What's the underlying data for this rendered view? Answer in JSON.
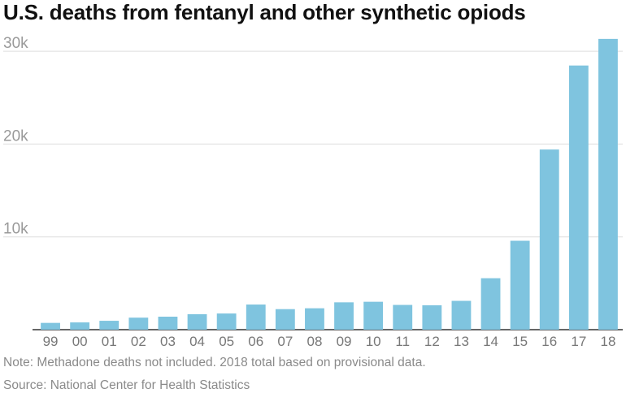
{
  "title": "U.S. deaths from fentanyl and other synthetic opiods",
  "note": "Note: Methadone deaths not included. 2018 total based on provisional data.",
  "source": "Source: National Center for Health Statistics",
  "colors": {
    "bar": "#7fc4df",
    "grid": "#dddddd",
    "axis": "#333333"
  },
  "chart_data": {
    "type": "bar",
    "title": "U.S. deaths from fentanyl and other synthetic opiods",
    "xlabel": "",
    "ylabel": "",
    "ylim": [
      0,
      31500
    ],
    "yticks": [
      10000,
      20000,
      30000
    ],
    "ytick_labels": [
      "10k",
      "20k",
      "30k"
    ],
    "grid": true,
    "categories": [
      "99",
      "00",
      "01",
      "02",
      "03",
      "04",
      "05",
      "06",
      "07",
      "08",
      "09",
      "10",
      "11",
      "12",
      "13",
      "14",
      "15",
      "16",
      "17",
      "18"
    ],
    "values": [
      730,
      782,
      957,
      1295,
      1400,
      1664,
      1742,
      2707,
      2213,
      2306,
      2946,
      3007,
      2666,
      2628,
      3105,
      5544,
      9580,
      19413,
      28466,
      31335
    ]
  }
}
